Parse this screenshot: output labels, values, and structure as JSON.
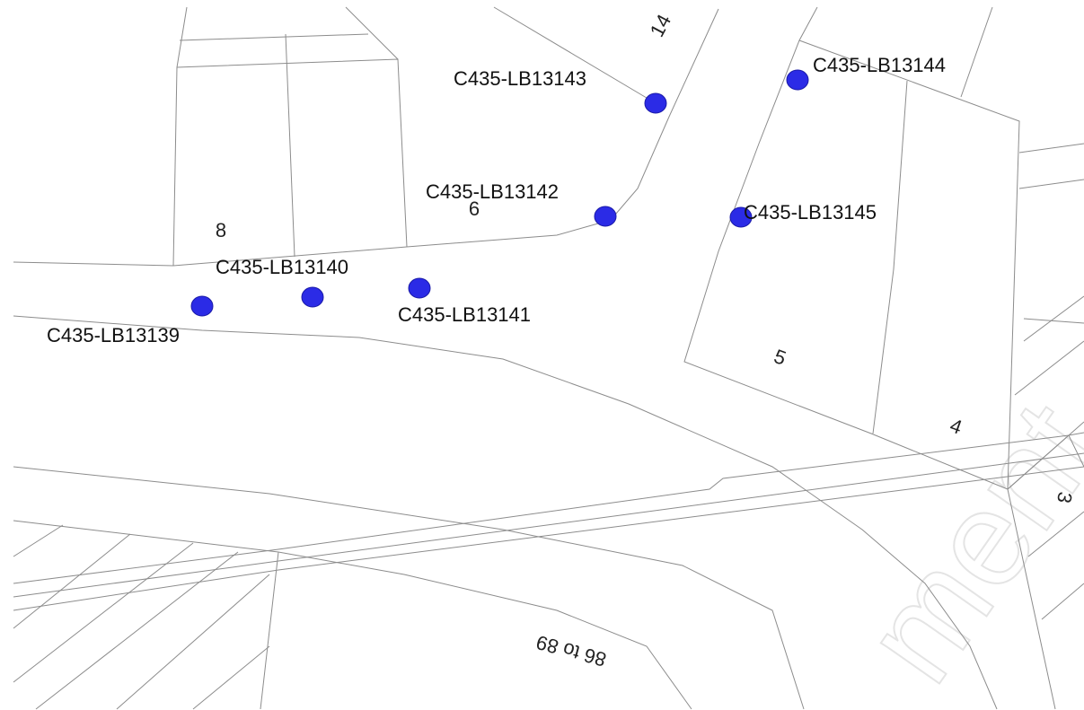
{
  "map": {
    "points": [
      {
        "label": "C435-LB13139"
      },
      {
        "label": "C435-LB13140"
      },
      {
        "label": "C435-LB13141"
      },
      {
        "label": "C435-LB13142"
      },
      {
        "label": "C435-LB13143"
      },
      {
        "label": "C435-LB13144"
      },
      {
        "label": "C435-LB13145"
      }
    ],
    "parcel_numbers": [
      "14",
      "8",
      "6",
      "5",
      "4",
      "3"
    ],
    "street_range": "86 to 89",
    "watermark": "ment"
  }
}
